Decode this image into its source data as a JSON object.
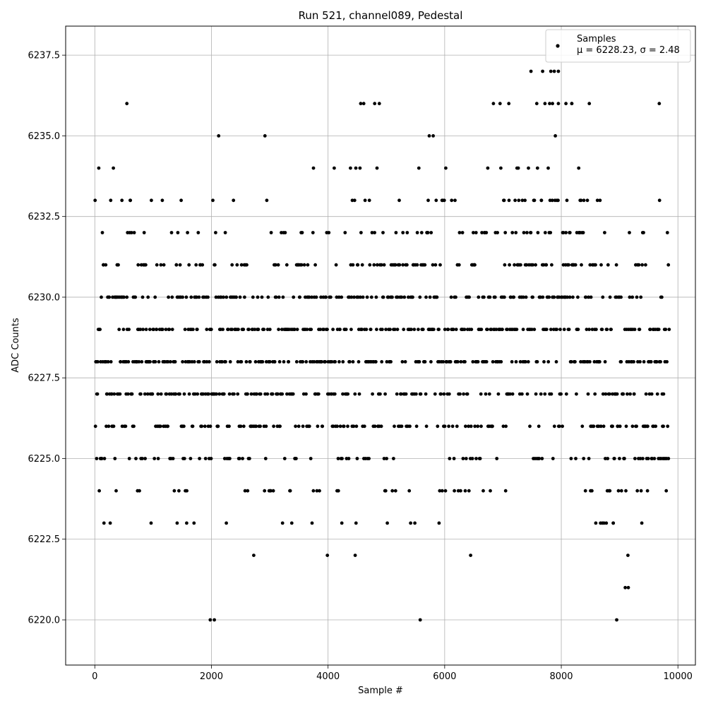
{
  "chart_data": {
    "type": "scatter",
    "title": "Run 521, channel089, Pedestal",
    "xlabel": "Sample #",
    "ylabel": "ADC Counts",
    "xlim": [
      -500,
      10300
    ],
    "ylim": [
      6218.6,
      6238.4
    ],
    "x_ticks": [
      0,
      2000,
      4000,
      6000,
      8000,
      10000
    ],
    "x_tick_labels": [
      "0",
      "2000",
      "4000",
      "6000",
      "8000",
      "10000"
    ],
    "y_ticks": [
      6220.0,
      6222.5,
      6225.0,
      6227.5,
      6230.0,
      6232.5,
      6235.0,
      6237.5
    ],
    "y_tick_labels": [
      "6220.0",
      "6222.5",
      "6225.0",
      "6227.5",
      "6230.0",
      "6232.5",
      "6235.0",
      "6237.5"
    ],
    "grid": true,
    "legend_position": "top-right",
    "marker_color": "#000000",
    "series": [
      {
        "name": "Samples",
        "x_range": [
          0,
          9850
        ],
        "levels": [
          6220,
          6221,
          6222,
          6223,
          6224,
          6225,
          6226,
          6227,
          6228,
          6229,
          6230,
          6231,
          6232,
          6233,
          6234,
          6235,
          6236,
          6237
        ],
        "density_segments": [
          [
            0,
            1500,
            6228.3,
            2.3
          ],
          [
            1500,
            3000,
            6227.8,
            2.2
          ],
          [
            3000,
            4500,
            6228.1,
            2.3
          ],
          [
            4500,
            6000,
            6228.6,
            2.4
          ],
          [
            6000,
            7000,
            6228.6,
            2.5
          ],
          [
            7000,
            8500,
            6229.5,
            2.4
          ],
          [
            8500,
            9850,
            6227.4,
            2.5
          ]
        ],
        "outliers": [
          [
            1980,
            6220
          ],
          [
            2050,
            6220
          ],
          [
            5580,
            6220
          ],
          [
            8950,
            6220
          ],
          [
            7480,
            6237
          ],
          [
            7680,
            6237
          ],
          [
            7820,
            6237
          ],
          [
            7880,
            6237
          ],
          [
            7950,
            6237
          ],
          [
            550,
            6236
          ],
          [
            4560,
            6236
          ],
          [
            4800,
            6236
          ],
          [
            4880,
            6236
          ],
          [
            6950,
            6236
          ],
          [
            7100,
            6236
          ],
          [
            7580,
            6236
          ],
          [
            7720,
            6236
          ],
          [
            7800,
            6236
          ],
          [
            7850,
            6236
          ],
          [
            7950,
            6236
          ],
          [
            8080,
            6236
          ],
          [
            8180,
            6236
          ],
          [
            8480,
            6236
          ],
          [
            9680,
            6236
          ]
        ]
      }
    ],
    "legend": {
      "label": "Samples",
      "stats": "μ = 6228.23, σ = 2.48"
    }
  }
}
